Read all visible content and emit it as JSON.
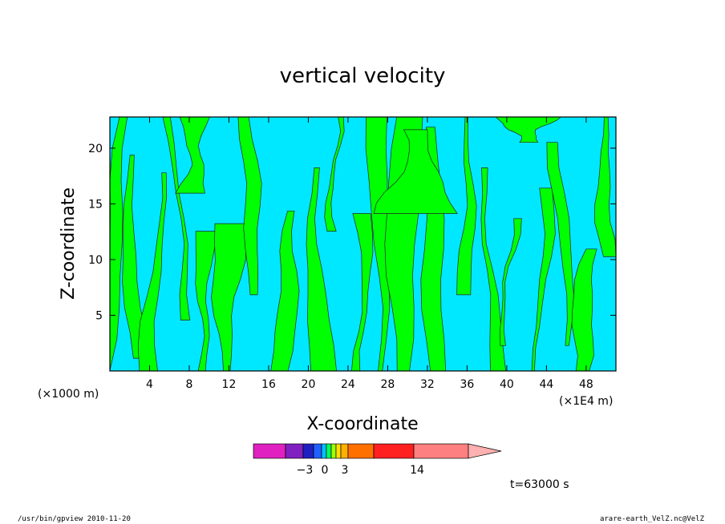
{
  "chart_data": {
    "type": "heatmap",
    "title": "vertical velocity",
    "xlabel": "X-coordinate",
    "ylabel": "Z-coordinate",
    "x_units_left": "(×1000 m)",
    "x_units_right": "(×1E4 m)",
    "xlim": [
      0,
      51
    ],
    "ylim": [
      0,
      22.8
    ],
    "x_ticks": [
      "4",
      "8",
      "12",
      "16",
      "20",
      "24",
      "28",
      "32",
      "36",
      "40",
      "44",
      "48"
    ],
    "y_ticks": [
      "5",
      "10",
      "15",
      "20"
    ],
    "time_label": "t=63000 s",
    "colorbar": {
      "tick_labels": [
        "−3",
        "0",
        "3",
        "14"
      ],
      "colors": [
        "#e020c0",
        "#8020c0",
        "#2020c0",
        "#2060ff",
        "#00c0ff",
        "#00ff60",
        "#a0ff00",
        "#ffe000",
        "#ffb000",
        "#ff7000",
        "#ff2020",
        "#ff8080",
        "#ffb0b0"
      ]
    },
    "field_colors": {
      "negative": "#00e8ff",
      "positive": "#00ff00"
    }
  },
  "footer": {
    "left": "/usr/bin/gpview   2010-11-20",
    "right": "arare-earth_VelZ.nc@VelZ"
  }
}
